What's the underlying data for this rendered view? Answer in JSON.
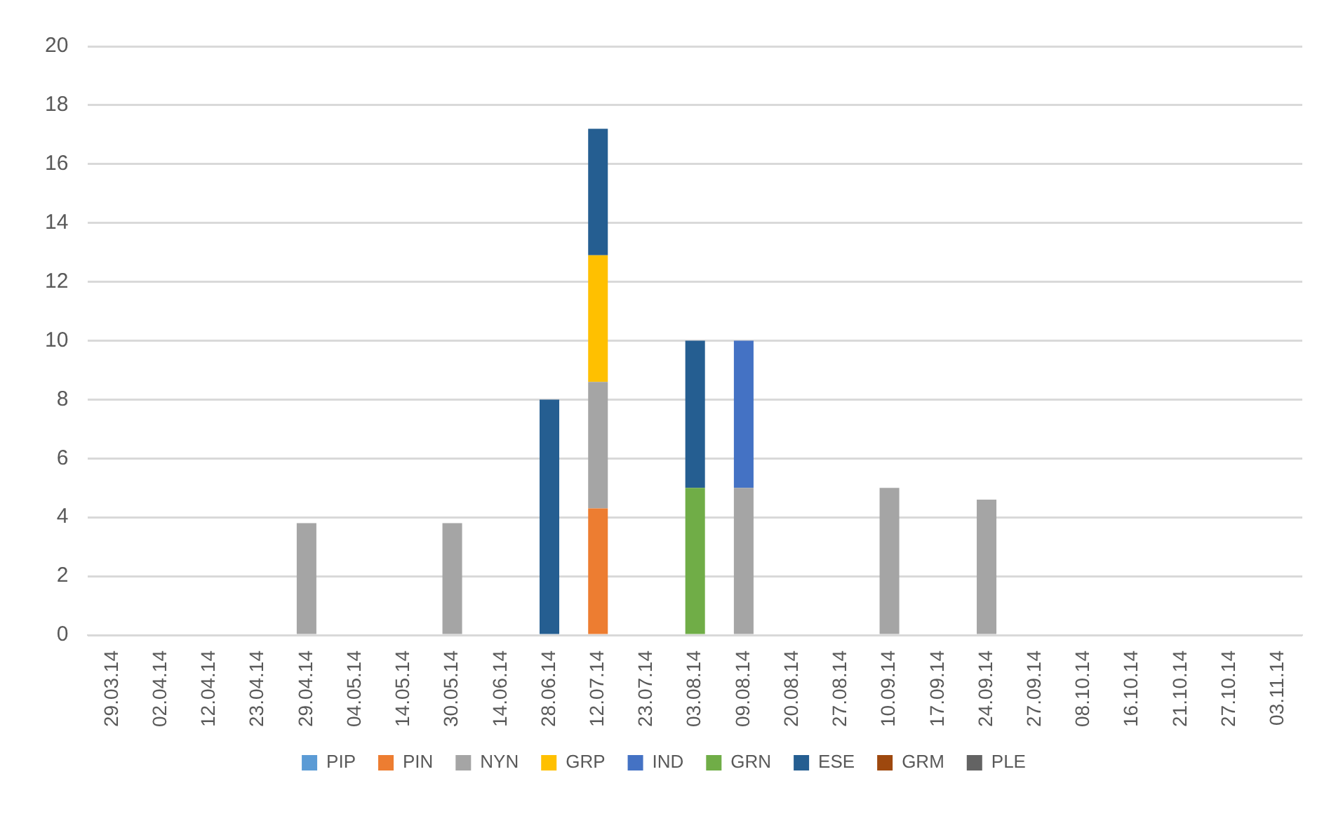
{
  "chart_data": {
    "type": "bar",
    "stacked": true,
    "categories": [
      "29.03.14",
      "02.04.14",
      "12.04.14",
      "23.04.14",
      "29.04.14",
      "04.05.14",
      "14.05.14",
      "30.05.14",
      "14.06.14",
      "28.06.14",
      "12.07.14",
      "23.07.14",
      "03.08.14",
      "09.08.14",
      "20.08.14",
      "27.08.14",
      "10.09.14",
      "17.09.14",
      "24.09.14",
      "27.09.14",
      "08.10.14",
      "16.10.14",
      "21.10.14",
      "27.10.14",
      "03.11.14"
    ],
    "series": [
      {
        "name": "PIP",
        "color": "#5b9bd5",
        "values": [
          0,
          0,
          0,
          0,
          0,
          0,
          0,
          0,
          0,
          0,
          0,
          0,
          0,
          0,
          0,
          0,
          0,
          0,
          0,
          0,
          0,
          0,
          0,
          0,
          0
        ]
      },
      {
        "name": "PIN",
        "color": "#ed7d31",
        "values": [
          0,
          0,
          0,
          0,
          0,
          0,
          0,
          0,
          0,
          0,
          4.3,
          0,
          0,
          0,
          0,
          0,
          0,
          0,
          0,
          0,
          0,
          0,
          0,
          0,
          0
        ]
      },
      {
        "name": "NYN",
        "color": "#a5a5a5",
        "values": [
          0,
          0,
          0,
          0,
          3.8,
          0,
          0,
          3.8,
          0,
          0,
          4.3,
          0,
          0,
          5,
          0,
          0,
          5,
          0,
          4.6,
          0,
          0,
          0,
          0,
          0,
          0
        ]
      },
      {
        "name": "GRP",
        "color": "#ffc000",
        "values": [
          0,
          0,
          0,
          0,
          0,
          0,
          0,
          0,
          0,
          0,
          4.3,
          0,
          0,
          0,
          0,
          0,
          0,
          0,
          0,
          0,
          0,
          0,
          0,
          0,
          0
        ]
      },
      {
        "name": "IND",
        "color": "#4472c4",
        "values": [
          0,
          0,
          0,
          0,
          0,
          0,
          0,
          0,
          0,
          0,
          0,
          0,
          0,
          5,
          0,
          0,
          0,
          0,
          0,
          0,
          0,
          0,
          0,
          0,
          0
        ]
      },
      {
        "name": "GRN",
        "color": "#70ad47",
        "values": [
          0,
          0,
          0,
          0,
          0,
          0,
          0,
          0,
          0,
          0,
          0,
          0,
          5,
          0,
          0,
          0,
          0,
          0,
          0,
          0,
          0,
          0,
          0,
          0,
          0
        ]
      },
      {
        "name": "ESE",
        "color": "#255e91",
        "values": [
          0,
          0,
          0,
          0,
          0,
          0,
          0,
          0,
          0,
          8,
          4.3,
          0,
          5,
          0,
          0,
          0,
          0,
          0,
          0,
          0,
          0,
          0,
          0,
          0,
          0
        ]
      },
      {
        "name": "GRM",
        "color": "#9e480e",
        "values": [
          0,
          0,
          0,
          0,
          0,
          0,
          0,
          0,
          0,
          0,
          0,
          0,
          0,
          0,
          0,
          0,
          0,
          0,
          0,
          0,
          0,
          0,
          0,
          0,
          0
        ]
      },
      {
        "name": "PLE",
        "color": "#636363",
        "values": [
          0,
          0,
          0,
          0,
          0,
          0,
          0,
          0,
          0,
          0,
          0,
          0,
          0,
          0,
          0,
          0,
          0,
          0,
          0,
          0,
          0,
          0,
          0,
          0,
          0
        ]
      }
    ],
    "ylim": [
      0,
      20
    ],
    "yticks": [
      0,
      2,
      4,
      6,
      8,
      10,
      12,
      14,
      16,
      18,
      20
    ],
    "grid": "y",
    "legend": "bottom"
  }
}
